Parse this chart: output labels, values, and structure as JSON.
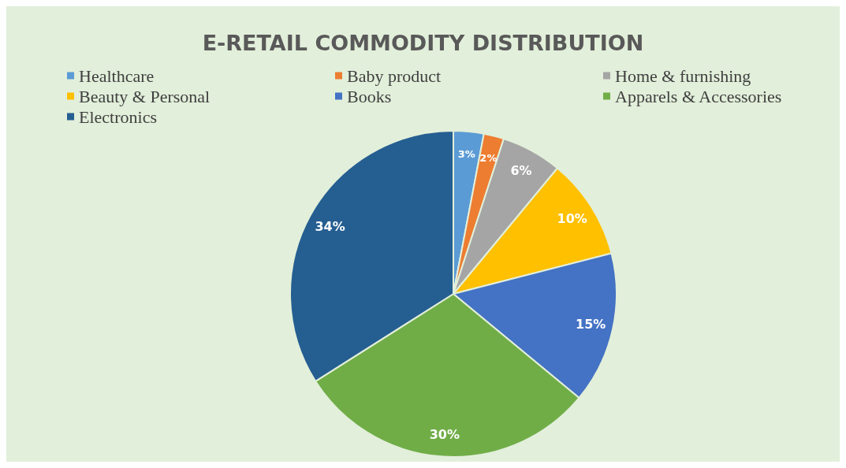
{
  "chart_data": {
    "type": "pie",
    "title": "E-RETAIL COMMODITY DISTRIBUTION",
    "categories": [
      "Healthcare",
      "Baby product",
      "Home & furnishing",
      "Beauty & Personal",
      "Books",
      "Apparels & Accessories",
      "Electronics"
    ],
    "values": [
      3,
      2,
      6,
      10,
      15,
      30,
      34
    ],
    "value_labels": [
      "3%",
      "2%",
      "6%",
      "10%",
      "15%",
      "30%",
      "34%"
    ],
    "colors": [
      "#5b9bd5",
      "#ed7d31",
      "#a5a5a5",
      "#ffc000",
      "#4472c4",
      "#70ad47",
      "#255e91"
    ],
    "legend": "top"
  }
}
